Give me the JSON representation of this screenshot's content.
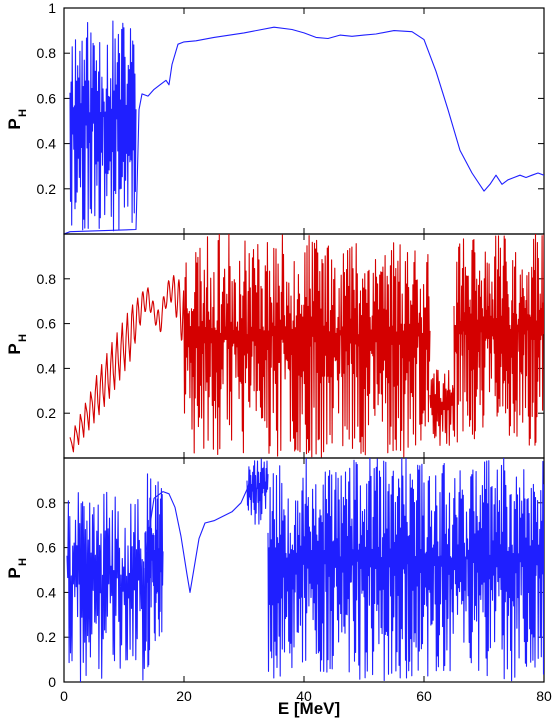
{
  "chart_data": [
    {
      "type": "line",
      "panel": "top",
      "ylabel": "P",
      "ylabel_subscript": "H",
      "xlim": [
        0,
        80
      ],
      "ylim": [
        0,
        1
      ],
      "y_ticks": [
        0.2,
        0.4,
        0.6,
        0.8,
        1
      ],
      "y_tick_labels": [
        "0.2",
        "0.4",
        "0.6",
        "0.8",
        "1"
      ],
      "grid": false,
      "series": [
        {
          "color": "#1f1fff",
          "style": "smooth",
          "x": [
            0,
            1.0,
            12.0,
            12.5,
            13,
            14,
            15,
            16,
            17,
            17.5,
            18,
            19,
            20,
            22,
            25,
            30,
            35,
            38,
            40,
            42,
            44,
            46,
            48,
            50,
            52,
            55,
            58,
            60,
            62,
            64,
            66,
            68,
            70,
            71,
            72,
            73,
            74,
            75,
            76,
            77,
            78,
            79,
            80
          ],
          "y": [
            0,
            0.01,
            0.02,
            0.55,
            0.62,
            0.61,
            0.64,
            0.66,
            0.68,
            0.66,
            0.75,
            0.84,
            0.85,
            0.855,
            0.87,
            0.89,
            0.915,
            0.905,
            0.89,
            0.87,
            0.865,
            0.88,
            0.875,
            0.88,
            0.885,
            0.9,
            0.895,
            0.86,
            0.72,
            0.55,
            0.37,
            0.27,
            0.19,
            0.22,
            0.26,
            0.22,
            0.24,
            0.25,
            0.26,
            0.25,
            0.26,
            0.27,
            0.26
          ]
        }
      ],
      "noise_bands": [
        {
          "x_range": [
            1,
            12
          ],
          "y_range": [
            0,
            0.95
          ],
          "oscillations": 60,
          "seed": 11
        }
      ]
    },
    {
      "type": "line",
      "panel": "middle",
      "ylabel": "P",
      "ylabel_subscript": "H",
      "xlim": [
        0,
        80
      ],
      "ylim": [
        0,
        1
      ],
      "y_ticks": [
        0.2,
        0.4,
        0.6,
        0.8
      ],
      "y_tick_labels": [
        "0.2",
        "0.4",
        "0.6",
        "0.8"
      ],
      "grid": false,
      "series": [
        {
          "color": "#d40000",
          "style": "oscillating",
          "x": [
            1,
            5,
            8,
            11,
            13,
            14,
            15,
            16,
            17,
            18,
            19,
            20
          ],
          "y": [
            0.05,
            0.25,
            0.4,
            0.55,
            0.68,
            0.72,
            0.65,
            0.6,
            0.72,
            0.76,
            0.7,
            0.62
          ],
          "amplitude": [
            0.05,
            0.1,
            0.12,
            0.12,
            0.06,
            0.04,
            0.04,
            0.05,
            0.05,
            0.06,
            0.1,
            0.15
          ]
        }
      ],
      "noise_bands": [
        {
          "x_range": [
            20,
            61
          ],
          "y_range": [
            0,
            1
          ],
          "oscillations": 230,
          "seed": 23
        },
        {
          "x_range": [
            61,
            65
          ],
          "y_range": [
            0.05,
            0.4
          ],
          "oscillations": 18,
          "seed": 29
        },
        {
          "x_range": [
            65,
            80
          ],
          "y_range": [
            0.05,
            1
          ],
          "oscillations": 95,
          "seed": 31
        }
      ]
    },
    {
      "type": "line",
      "panel": "bottom",
      "ylabel": "P",
      "ylabel_subscript": "H",
      "xlabel": "E [MeV]",
      "xlim": [
        0,
        80
      ],
      "ylim": [
        0,
        1
      ],
      "x_ticks": [
        0,
        20,
        40,
        60,
        80
      ],
      "x_tick_labels": [
        "0",
        "20",
        "40",
        "60",
        "80"
      ],
      "y_ticks": [
        0,
        0.2,
        0.4,
        0.6,
        0.8
      ],
      "y_tick_labels": [
        "0",
        "0.2",
        "0.4",
        "0.6",
        "0.8"
      ],
      "grid": false,
      "series": [
        {
          "color": "#1f1fff",
          "style": "smooth",
          "x": [
            13.5,
            15,
            16.5,
            17.5,
            18.5,
            19.5,
            20.5,
            21,
            21.5,
            22.5,
            23.5,
            25,
            26.5,
            28,
            29.5,
            30.5,
            31
          ],
          "y": [
            0.55,
            0.82,
            0.85,
            0.84,
            0.78,
            0.65,
            0.48,
            0.4,
            0.48,
            0.64,
            0.71,
            0.72,
            0.74,
            0.76,
            0.8,
            0.86,
            0.9
          ]
        }
      ],
      "noise_bands": [
        {
          "x_range": [
            0.5,
            13.5
          ],
          "y_range": [
            0,
            0.85
          ],
          "oscillations": 55,
          "seed": 41
        },
        {
          "x_range": [
            13.5,
            16.5
          ],
          "y_range": [
            0.05,
            0.98
          ],
          "oscillations": 22,
          "seed": 43
        },
        {
          "x_range": [
            30.5,
            34
          ],
          "y_range": [
            0.7,
            1
          ],
          "oscillations": 22,
          "seed": 47
        },
        {
          "x_range": [
            34,
            80
          ],
          "y_range": [
            0,
            1
          ],
          "oscillations": 260,
          "seed": 53
        }
      ]
    }
  ]
}
